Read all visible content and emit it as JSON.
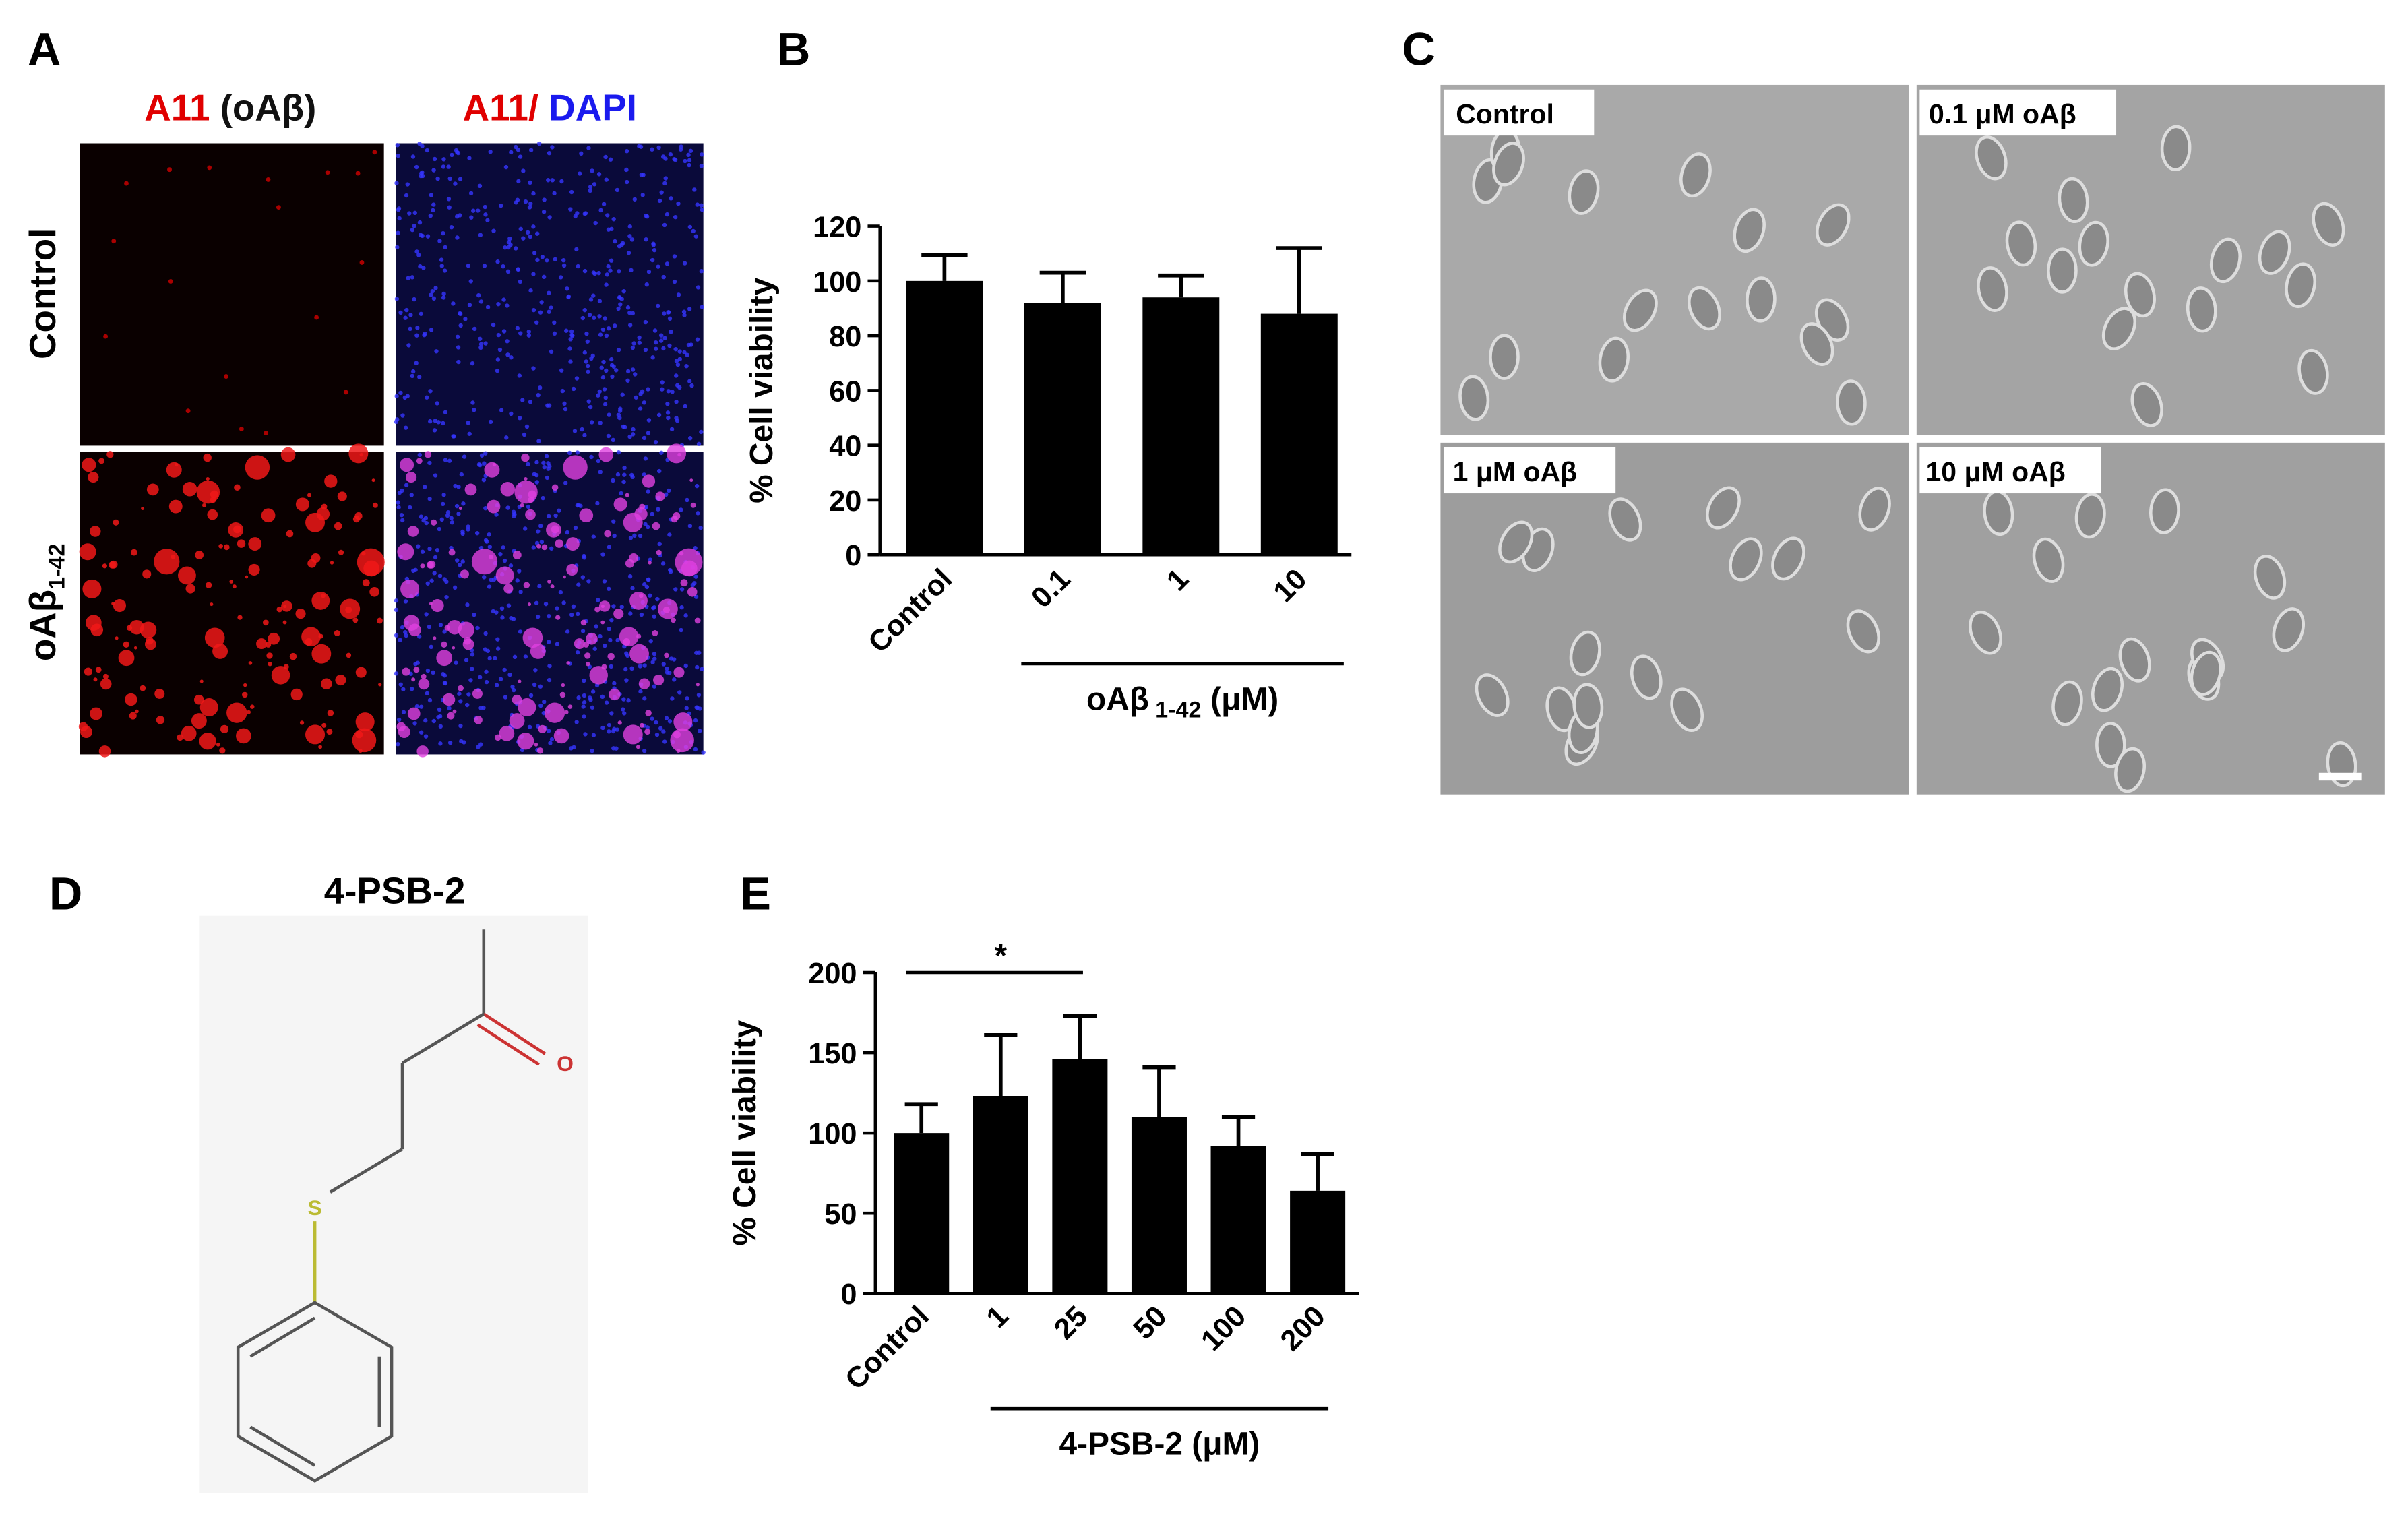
{
  "figure": {
    "panel_labels": [
      "A",
      "B",
      "C",
      "D",
      "E"
    ],
    "panel_a": {
      "header_1": {
        "red": "A11",
        "black": "(oAβ)"
      },
      "header_2": {
        "red": "A11/",
        "blue": "DAPI"
      },
      "row_1": "Control",
      "row_2": {
        "main": "oAβ",
        "sub": "1-42"
      }
    },
    "panel_c": {
      "image_labels": [
        "Control",
        "0.1 μM oAβ",
        "1 μM oAβ",
        "10 μM oAβ"
      ]
    },
    "panel_d": {
      "title": "4-PSB-2",
      "atoms": [
        "O",
        "S"
      ]
    }
  },
  "chart_data": [
    {
      "type": "bar",
      "y_label": "% Cell viability",
      "categories": [
        "Control",
        "0.1",
        "1",
        "10"
      ],
      "values": [
        100,
        92,
        94,
        88
      ],
      "errors": [
        9.5,
        11,
        8,
        24
      ],
      "color": "#000000",
      "ylim": [
        0,
        120
      ],
      "yticks": [
        0,
        20,
        40,
        60,
        80,
        100,
        120
      ],
      "group_label": {
        "main": "oAβ",
        "sub": "1-42",
        "unit": "(μM)"
      }
    },
    {
      "type": "bar",
      "y_label": "% Cell viability",
      "categories": [
        "Control",
        "1",
        "25",
        "50",
        "100",
        "200"
      ],
      "values": [
        100,
        123,
        146,
        110,
        92,
        64
      ],
      "errors": [
        18,
        38,
        27,
        31,
        18,
        23
      ],
      "color": "#000000",
      "ylim": [
        0,
        200
      ],
      "yticks": [
        0,
        50,
        100,
        150,
        200
      ],
      "group_label": {
        "main": "4-PSB-2 (μM)"
      },
      "significance": {
        "label": "*",
        "categories": [
          "Control",
          "25"
        ]
      }
    }
  ]
}
